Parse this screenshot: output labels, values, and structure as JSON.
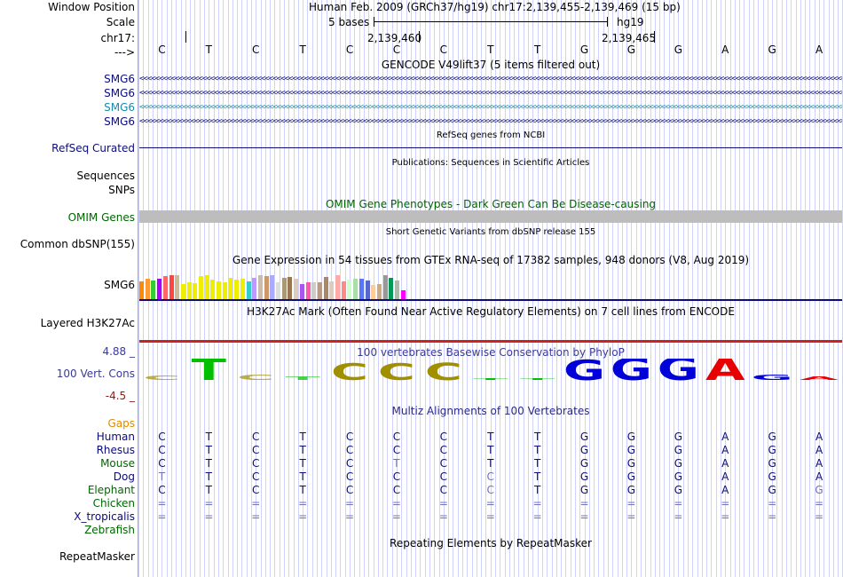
{
  "header": {
    "window_position_label": "Window Position",
    "scale_label": "Scale",
    "chrom_label": "chr17:",
    "arrow_label": "--->",
    "assembly_text": "Human Feb. 2009 (GRCh37/hg19)   chr17:2,139,455-2,139,469 (15 bp)",
    "scale_text": "5 bases",
    "assembly_short": "hg19",
    "coord_1": "2,139,460",
    "coord_2": "2,139,465"
  },
  "sequence": [
    "C",
    "T",
    "C",
    "T",
    "C",
    "C",
    "C",
    "T",
    "T",
    "G",
    "G",
    "G",
    "A",
    "G",
    "A"
  ],
  "gencode": {
    "title": "GENCODE V49lift37 (5 items filtered out)",
    "genes": [
      {
        "name": "SMG6",
        "color": "#0c0c78"
      },
      {
        "name": "SMG6",
        "color": "#0c0c78"
      },
      {
        "name": "SMG6",
        "color": "#1a8aa8"
      },
      {
        "name": "SMG6",
        "color": "#0c0c78"
      }
    ]
  },
  "refseq": {
    "title": "RefSeq genes from NCBI",
    "label": "RefSeq Curated"
  },
  "publications": {
    "title": "Publications: Sequences in Scientific Articles",
    "label_1": "Sequences",
    "label_2": "SNPs"
  },
  "omim": {
    "title": "OMIM Gene Phenotypes - Dark Green Can Be Disease-causing",
    "label": "OMIM Genes"
  },
  "dbsnp": {
    "title": "Short Genetic Variants from dbSNP release 155",
    "label": "Common dbSNP(155)"
  },
  "gtex": {
    "title": "Gene Expression in 54 tissues from GTEx RNA-seq of 17382 samples, 948 donors (V8, Aug 2019)",
    "label": "SMG6",
    "bars": [
      {
        "color": "#ff8800",
        "value": 0.55
      },
      {
        "color": "#ff9933",
        "value": 0.62
      },
      {
        "color": "#33cc33",
        "value": 0.58
      },
      {
        "color": "#aa00ff",
        "value": 0.62
      },
      {
        "color": "#ff6666",
        "value": 0.7
      },
      {
        "color": "#ff4444",
        "value": 0.72
      },
      {
        "color": "#ccbb99",
        "value": 0.72
      },
      {
        "color": "#eeee00",
        "value": 0.45
      },
      {
        "color": "#eeee00",
        "value": 0.5
      },
      {
        "color": "#eeee00",
        "value": 0.48
      },
      {
        "color": "#eeee00",
        "value": 0.7
      },
      {
        "color": "#eeee00",
        "value": 0.72
      },
      {
        "color": "#eeee00",
        "value": 0.6
      },
      {
        "color": "#eeee00",
        "value": 0.55
      },
      {
        "color": "#eeee00",
        "value": 0.52
      },
      {
        "color": "#eeee00",
        "value": 0.65
      },
      {
        "color": "#eeee00",
        "value": 0.6
      },
      {
        "color": "#eeee00",
        "value": 0.62
      },
      {
        "color": "#33cccc",
        "value": 0.55
      },
      {
        "color": "#bb99ff",
        "value": 0.65
      },
      {
        "color": "#ccbbaa",
        "value": 0.72
      },
      {
        "color": "#cc9966",
        "value": 0.7
      },
      {
        "color": "#aaaaff",
        "value": 0.72
      },
      {
        "color": "#dddddd",
        "value": 0.5
      },
      {
        "color": "#aa9977",
        "value": 0.65
      },
      {
        "color": "#997755",
        "value": 0.68
      },
      {
        "color": "#ddccbb",
        "value": 0.62
      },
      {
        "color": "#aa55ee",
        "value": 0.45
      },
      {
        "color": "#ff55aa",
        "value": 0.52
      },
      {
        "color": "#cccccc",
        "value": 0.52
      },
      {
        "color": "#bb9988",
        "value": 0.5
      },
      {
        "color": "#aa8866",
        "value": 0.68
      },
      {
        "color": "#ddccbb",
        "value": 0.55
      },
      {
        "color": "#ffaaaa",
        "value": 0.72
      },
      {
        "color": "#ff8888",
        "value": 0.55
      },
      {
        "color": "#ccffcc",
        "value": 0.6
      },
      {
        "color": "#aaddaa",
        "value": 0.62
      },
      {
        "color": "#5577ff",
        "value": 0.62
      },
      {
        "color": "#5566cc",
        "value": 0.58
      },
      {
        "color": "#ffcc99",
        "value": 0.42
      },
      {
        "color": "#ccaa88",
        "value": 0.45
      },
      {
        "color": "#999999",
        "value": 0.72
      },
      {
        "color": "#009955",
        "value": 0.65
      },
      {
        "color": "#aabbaa",
        "value": 0.58
      },
      {
        "color": "#ff00ff",
        "value": 0.28
      }
    ]
  },
  "h3k27ac": {
    "title": "H3K27Ac Mark (Often Found Near Active Regulatory Elements) on 7 cell lines from ENCODE",
    "label": "Layered H3K27Ac"
  },
  "phylop": {
    "title": "100 vertebrates Basewise Conservation by PhyloP",
    "label": "100 Vert. Cons",
    "max": "4.88 _",
    "min": "-4.5 _",
    "scores": [
      -0.9,
      4.1,
      -1.0,
      -0.6,
      3.2,
      3.1,
      3.3,
      0,
      0,
      3.8,
      4.2,
      4.4,
      4.2,
      1.0,
      0.6
    ]
  },
  "multiz": {
    "title": "Multiz Alignments of 100 Vertebrates",
    "gaps_label": "Gaps",
    "species": [
      {
        "name": "Human",
        "color": "#0c0c78",
        "bases": [
          "C",
          "T",
          "C",
          "T",
          "C",
          "C",
          "C",
          "T",
          "T",
          "G",
          "G",
          "G",
          "A",
          "G",
          "A"
        ]
      },
      {
        "name": "Rhesus",
        "color": "#0c0c78",
        "bases": [
          "C",
          "T",
          "C",
          "T",
          "C",
          "C",
          "C",
          "T",
          "T",
          "G",
          "G",
          "G",
          "A",
          "G",
          "A"
        ]
      },
      {
        "name": "Mouse",
        "color": "#006600",
        "bases": [
          "C",
          "T",
          "C",
          "T",
          "C",
          "T",
          "C",
          "T",
          "T",
          "G",
          "G",
          "G",
          "A",
          "G",
          "A"
        ]
      },
      {
        "name": "Dog",
        "color": "#0c0c78",
        "bases": [
          "T",
          "T",
          "C",
          "T",
          "C",
          "C",
          "C",
          "C",
          "T",
          "G",
          "G",
          "G",
          "A",
          "G",
          "A"
        ]
      },
      {
        "name": "Elephant",
        "color": "#006600",
        "bases": [
          "C",
          "T",
          "C",
          "T",
          "C",
          "C",
          "C",
          "C",
          "T",
          "G",
          "G",
          "G",
          "A",
          "G",
          "G"
        ]
      },
      {
        "name": "Chicken",
        "color": "#006600",
        "bases": [
          "=",
          "=",
          "=",
          "=",
          "=",
          "=",
          "=",
          "=",
          "=",
          "=",
          "=",
          "=",
          "=",
          "=",
          "="
        ]
      },
      {
        "name": "X_tropicalis",
        "color": "#0c0c78",
        "bases": [
          "=",
          "=",
          "=",
          "=",
          "=",
          "=",
          "=",
          "=",
          "=",
          "=",
          "=",
          "=",
          "=",
          "=",
          "="
        ]
      },
      {
        "name": "Zebrafish",
        "color": "#006600",
        "bases": [
          "",
          "",
          "",
          "",
          "",
          "",
          "",
          "",
          "",
          "",
          "",
          "",
          "",
          "",
          ""
        ]
      }
    ]
  },
  "repeatmasker": {
    "title": "Repeating Elements by RepeatMasker",
    "label": "RepeatMasker"
  },
  "colors": {
    "conserved_base": "#0c0c78",
    "mismatch_base": "#7070c0",
    "omim_bar": "#bdbdbd",
    "h3k27ac_line": "#cc2222"
  }
}
